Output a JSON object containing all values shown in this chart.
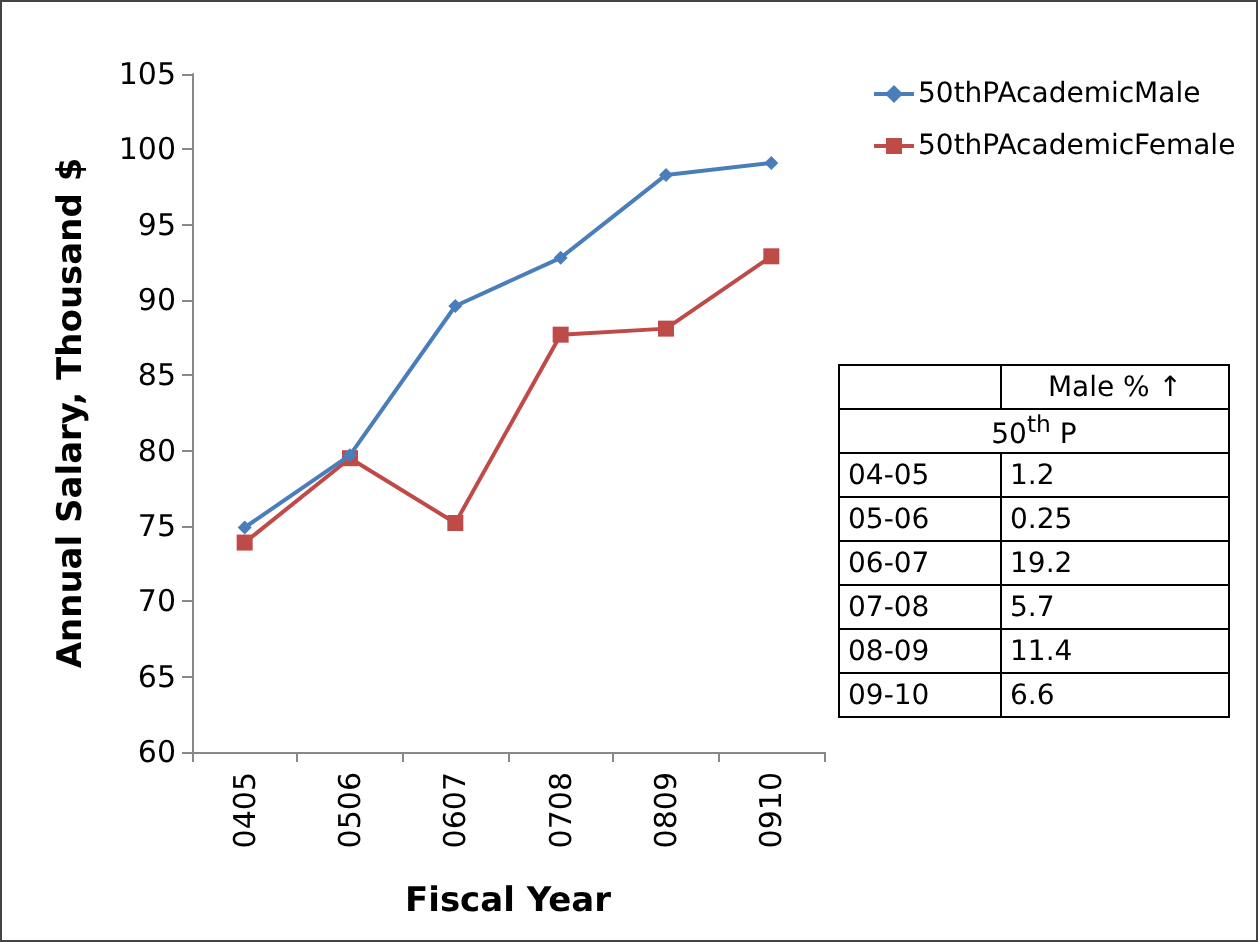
{
  "chart_data": {
    "type": "line",
    "xlabel": "Fiscal Year",
    "ylabel": "Annual Salary, Thousand $",
    "categories": [
      "0405",
      "0506",
      "0607",
      "0708",
      "0809",
      "0910"
    ],
    "series": [
      {
        "name": "50thPAcademicMale",
        "color": "#4a7ebb",
        "marker": "diamond",
        "values": [
          74.9,
          79.7,
          89.6,
          92.8,
          98.3,
          99.1
        ]
      },
      {
        "name": "50thPAcademicFemale",
        "color": "#be4b48",
        "marker": "square",
        "values": [
          73.9,
          79.5,
          75.2,
          87.7,
          88.1,
          92.9
        ]
      }
    ],
    "ylim": [
      60,
      105
    ],
    "yticks": [
      60,
      65,
      70,
      75,
      80,
      85,
      90,
      95,
      100,
      105
    ],
    "grid": false,
    "legend": "top right",
    "annotations": [
      "Male  % ↑",
      "50$^{th}$ P",
      "04-05",
      "1.2",
      "05-06",
      "0.25",
      "06-07",
      "19.2",
      "07-08",
      "5.7",
      "08-09",
      "11.4",
      "09-10",
      "6.6"
    ]
  }
}
